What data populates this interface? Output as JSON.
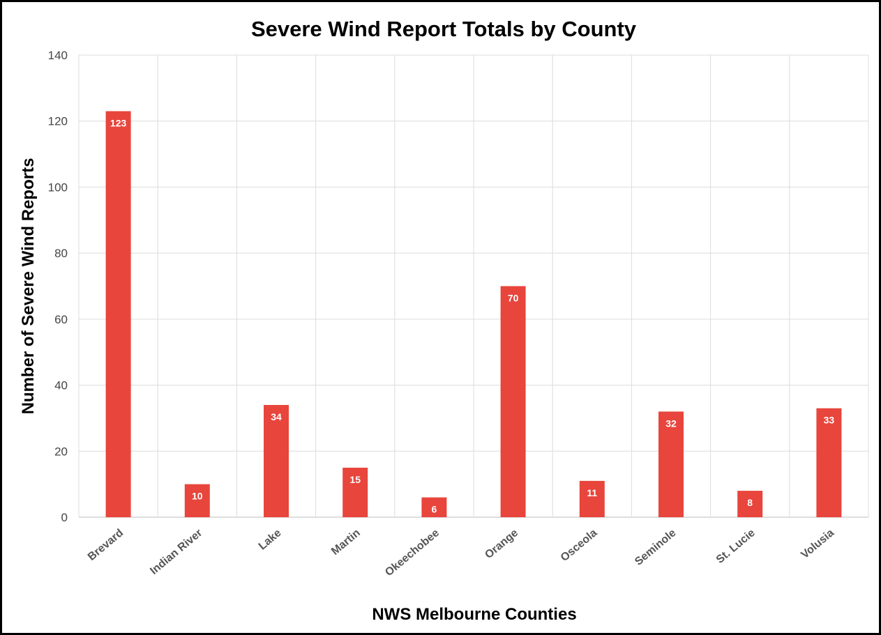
{
  "chart_data": {
    "type": "bar",
    "title": "Severe Wind Report Totals by County",
    "xlabel": "NWS Melbourne Counties",
    "ylabel": "Number of Severe Wind Reports",
    "categories": [
      "Brevard",
      "Indian River",
      "Lake",
      "Martin",
      "Okeechobee",
      "Orange",
      "Osceola",
      "Seminole",
      "St. Lucie",
      "Volusia"
    ],
    "values": [
      123,
      10,
      34,
      15,
      6,
      70,
      11,
      32,
      8,
      33
    ],
    "ylim": [
      0,
      140
    ],
    "yticks": [
      0,
      20,
      40,
      60,
      80,
      100,
      120,
      140
    ],
    "grid": true,
    "legend": "none",
    "bar_color": "#e8453c",
    "data_labels": true
  }
}
